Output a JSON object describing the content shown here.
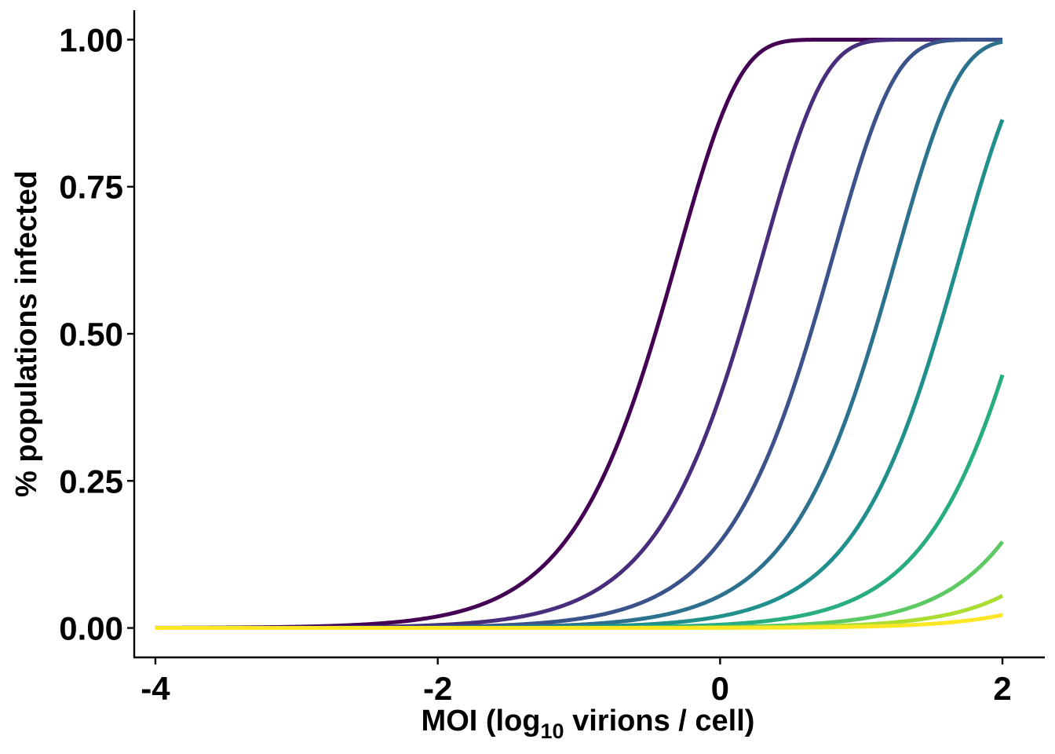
{
  "chart_data": {
    "type": "line",
    "title": "",
    "xlabel_parts": {
      "prefix": "MOI (log",
      "subscript": "10",
      "suffix": " virions / cell)"
    },
    "ylabel": "% populations infected",
    "xlim": [
      -4.15,
      2.3
    ],
    "ylim": [
      -0.05,
      1.05
    ],
    "x_ticks": [
      -4,
      -2,
      0,
      2
    ],
    "x_tick_labels": [
      "-4",
      "-2",
      "0",
      "2"
    ],
    "y_ticks": [
      0,
      0.25,
      0.5,
      0.75,
      1
    ],
    "y_tick_labels": [
      "0.00",
      "0.25",
      "0.50",
      "0.75",
      "1.00"
    ],
    "grid": false,
    "legend": "none",
    "x_domain": [
      -4,
      2
    ],
    "series": [
      {
        "rate_log10": 0.3,
        "color": "#440154"
      },
      {
        "rate_log10": -0.3,
        "color": "#472D7B"
      },
      {
        "rate_log10": -0.8,
        "color": "#3B528B"
      },
      {
        "rate_log10": -1.25,
        "color": "#2C728E"
      },
      {
        "rate_log10": -1.7,
        "color": "#21908C"
      },
      {
        "rate_log10": -2.25,
        "color": "#27AD81"
      },
      {
        "rate_log10": -2.8,
        "color": "#5DC963"
      },
      {
        "rate_log10": -3.25,
        "color": "#AADC32"
      },
      {
        "rate_log10": -3.65,
        "color": "#FDE725"
      }
    ]
  }
}
